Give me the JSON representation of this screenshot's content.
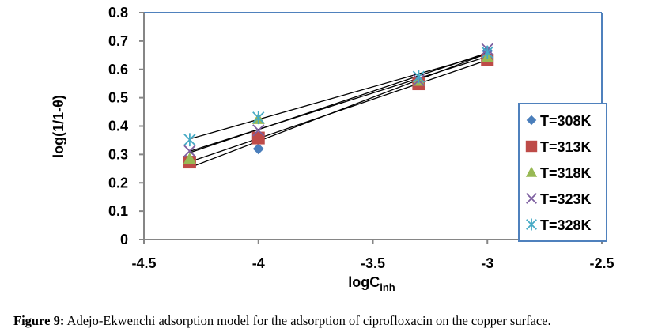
{
  "chart_data": {
    "type": "scatter",
    "title": "",
    "xlabel": "logC",
    "xlabel_subscript": "inh",
    "ylabel": "log(1/1-θ)",
    "xlim": [
      -4.5,
      -2.5
    ],
    "ylim": [
      0,
      0.8
    ],
    "xticks": [
      "-4.5",
      "-4",
      "-3.5",
      "-3",
      "-2.5"
    ],
    "xtick_values": [
      -4.5,
      -4,
      -3.5,
      -3,
      -2.5
    ],
    "yticks": [
      "0",
      "0.1",
      "0.2",
      "0.3",
      "0.4",
      "0.5",
      "0.6",
      "0.7",
      "0.8"
    ],
    "ytick_values": [
      0,
      0.1,
      0.2,
      0.3,
      0.4,
      0.5,
      0.6,
      0.7,
      0.8
    ],
    "grid": false,
    "legend_position": "right",
    "trendlines": "linear",
    "x": [
      -4.3,
      -4.0,
      -3.3,
      -3.0
    ],
    "series": [
      {
        "name": "T=308K",
        "marker": "diamond",
        "color": "#4a7ebb",
        "values": [
          0.275,
          0.32,
          0.56,
          0.665
        ]
      },
      {
        "name": "T=313K",
        "marker": "square",
        "color": "#be4b48",
        "values": [
          0.273,
          0.358,
          0.549,
          0.633
        ]
      },
      {
        "name": "T=318K",
        "marker": "triangle",
        "color": "#98b954",
        "values": [
          0.285,
          0.425,
          0.56,
          0.643
        ]
      },
      {
        "name": "T=323K",
        "marker": "x",
        "color": "#7d5fa0",
        "values": [
          0.312,
          0.385,
          0.562,
          0.671
        ]
      },
      {
        "name": "T=328K",
        "marker": "asterisk",
        "color": "#46aac5",
        "values": [
          0.352,
          0.43,
          0.574,
          0.66
        ]
      }
    ]
  },
  "caption": {
    "label": "Figure 9:",
    "text": " Adejo-Ekwenchi adsorption model for the adsorption of ciprofloxacin on the copper surface."
  }
}
